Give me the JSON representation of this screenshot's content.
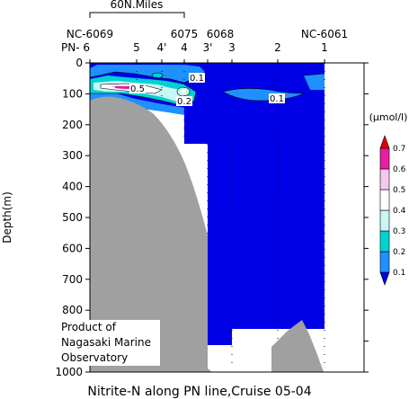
{
  "chart_data": {
    "type": "contour",
    "title": "Nitrite-N along PN line,Cruise 05-04",
    "ylabel": "Depth(m)",
    "ylim": [
      1000,
      0
    ],
    "y_ticks": [
      "0",
      "100",
      "200",
      "300",
      "400",
      "500",
      "600",
      "700",
      "800",
      "900",
      "1000"
    ],
    "x_scale_label": "60N.Miles",
    "station_labels_top": [
      "NC-6069",
      "6075",
      "6068",
      "NC-6061"
    ],
    "station_labels": [
      "PN- 6",
      "5",
      "4'",
      "4",
      "3'",
      "3",
      "2",
      "1"
    ],
    "colorbar": {
      "unit": "(μmol/l)",
      "levels": [
        {
          "label": "0.1",
          "color": "#0000e6"
        },
        {
          "label": "0.2",
          "color": "#1e90ff"
        },
        {
          "label": "0.3",
          "color": "#00d2d2"
        },
        {
          "label": "0.4",
          "color": "#c8f5f5"
        },
        {
          "label": "0.5",
          "color": "#ffffff"
        },
        {
          "label": "0.6",
          "color": "#f5c8f0"
        },
        {
          "label": "0.7",
          "color": "#e61ea0"
        }
      ],
      "top_color": "#e60000"
    },
    "contour_labels": [
      {
        "text": "0.5",
        "station": "5",
        "depth": 80
      },
      {
        "text": "0.1",
        "station": "4",
        "depth": 50
      },
      {
        "text": "0.2",
        "station": "4",
        "depth": 120
      },
      {
        "text": "0.1",
        "station": "2",
        "depth": 115
      }
    ],
    "background_fill": {
      "value": "0.1",
      "color": "#0000e6"
    },
    "seafloor_color": "#a0a0a0"
  },
  "credit": {
    "line1": "Product of",
    "line2": "Nagasaki Marine",
    "line3": "Observatory"
  }
}
